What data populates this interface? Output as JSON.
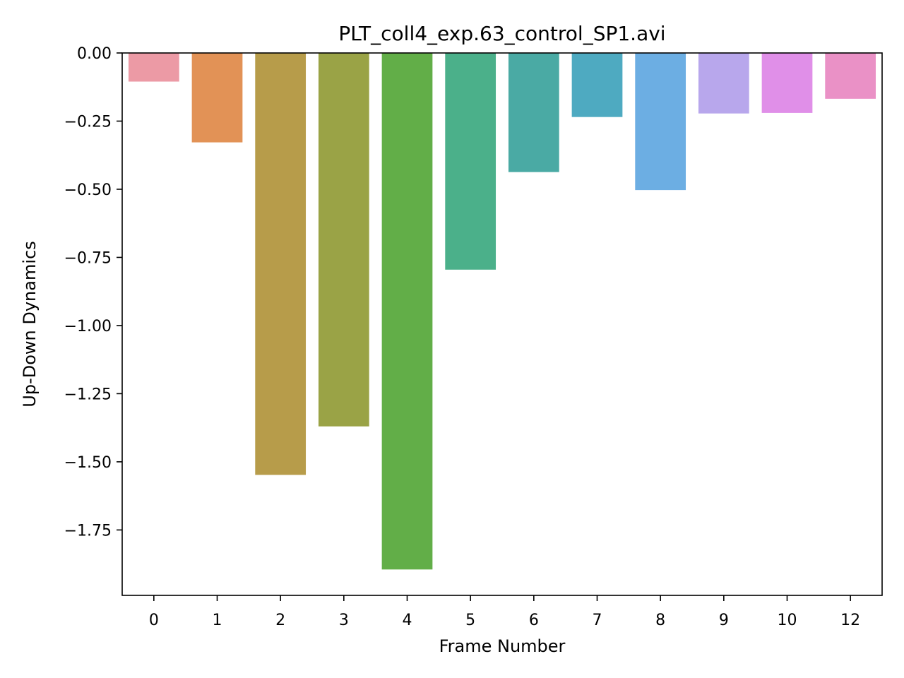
{
  "chart_data": {
    "type": "bar",
    "title": "PLT_coll4_exp.63_control_SP1.avi",
    "xlabel": "Frame Number",
    "ylabel": "Up-Down Dynamics",
    "categories": [
      "0",
      "1",
      "2",
      "3",
      "4",
      "5",
      "6",
      "7",
      "8",
      "9",
      "10",
      "12"
    ],
    "values": [
      -0.105,
      -0.328,
      -1.548,
      -1.37,
      -1.895,
      -0.795,
      -0.437,
      -0.235,
      -0.503,
      -0.222,
      -0.22,
      -0.168
    ],
    "colors": [
      "#ec9aa5",
      "#e29256",
      "#b79c4a",
      "#9aa346",
      "#62ae48",
      "#4bb08a",
      "#4aaaa4",
      "#4eaac1",
      "#6caee3",
      "#b8a7ec",
      "#e08fe8",
      "#ea91c6"
    ],
    "ylim": [
      -1.99,
      0.0
    ],
    "yticks": [
      0.0,
      -0.25,
      -0.5,
      -0.75,
      -1.0,
      -1.25,
      -1.5,
      -1.75
    ],
    "ytick_labels": [
      "0.00",
      "−0.25",
      "−0.50",
      "−0.75",
      "−1.00",
      "−1.25",
      "−1.50",
      "−1.75"
    ],
    "grid": false,
    "legend": false
  }
}
